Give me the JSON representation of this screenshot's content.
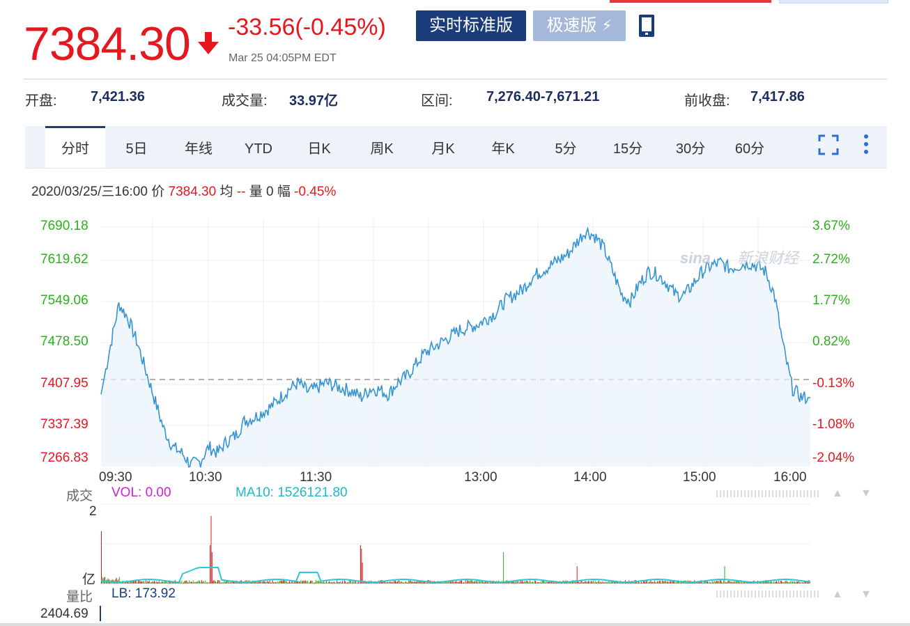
{
  "header": {
    "price": "7384.30",
    "change": "-33.56(-0.45%)",
    "timestamp": "Mar 25 04:05PM EDT",
    "btn_realtime": "实时标准版",
    "btn_fast": "极速版"
  },
  "stats": [
    {
      "label": "开盘:",
      "value": "7,421.36"
    },
    {
      "label": "成交量:",
      "value": "33.97亿"
    },
    {
      "label": "区间:",
      "value": "7,276.40-7,671.21"
    },
    {
      "label": "前收盘:",
      "value": "7,417.86"
    }
  ],
  "tabs": [
    "分时",
    "5日",
    "年线",
    "YTD",
    "日K",
    "周K",
    "月K",
    "年K",
    "5分",
    "15分",
    "30分",
    "60分"
  ],
  "active_tab": "分时",
  "info": {
    "date": "2020/03/25/三16:00",
    "price_label": "价",
    "price_value": "7384.30",
    "avg_label": "均",
    "avg_value": "--",
    "vol_label": "量",
    "vol_value": "0",
    "amp_label": "幅",
    "amp_value": "-0.45%"
  },
  "watermark": "新浪财经",
  "chart_data": {
    "type": "line",
    "prev_close": 7417.86,
    "y_left_ticks": [
      "7690.18",
      "7619.62",
      "7549.06",
      "7478.50",
      "7407.95",
      "7337.39",
      "7266.83"
    ],
    "y_right_ticks": [
      "3.67%",
      "2.72%",
      "1.77%",
      "0.82%",
      "-0.13%",
      "-1.08%",
      "-2.04%"
    ],
    "x_ticks": [
      "09:30",
      "10:30",
      "11:30",
      "13:00",
      "14:00",
      "15:00",
      "16:00"
    ],
    "ylim": [
      7266.83,
      7690.18
    ],
    "price_series": [
      7390,
      7470,
      7545,
      7520,
      7480,
      7430,
      7380,
      7330,
      7300,
      7290,
      7270,
      7275,
      7300,
      7290,
      7310,
      7320,
      7345,
      7350,
      7360,
      7370,
      7385,
      7400,
      7410,
      7395,
      7400,
      7410,
      7405,
      7400,
      7395,
      7385,
      7400,
      7398,
      7390,
      7410,
      7420,
      7440,
      7460,
      7470,
      7480,
      7490,
      7500,
      7505,
      7510,
      7520,
      7530,
      7550,
      7560,
      7570,
      7590,
      7600,
      7610,
      7620,
      7630,
      7650,
      7670,
      7660,
      7640,
      7600,
      7560,
      7550,
      7580,
      7600,
      7595,
      7580,
      7560,
      7560,
      7580,
      7600,
      7610,
      7615,
      7605,
      7610,
      7615,
      7610,
      7600,
      7560,
      7470,
      7400,
      7385,
      7384.3
    ],
    "volume_title": "成交",
    "vol_label": "VOL: 0.00",
    "ma10_label": "MA10: 1526121.80",
    "vol_top_tick": "2",
    "vol_unit": "亿",
    "ratio_title": "量比",
    "lb_label": "LB: 173.92",
    "ratio_bottom": "2404.69"
  },
  "colors": {
    "up": "#2bb11b",
    "down": "#e4181e",
    "line": "#3593cf",
    "navy": "#1b3c7a"
  }
}
